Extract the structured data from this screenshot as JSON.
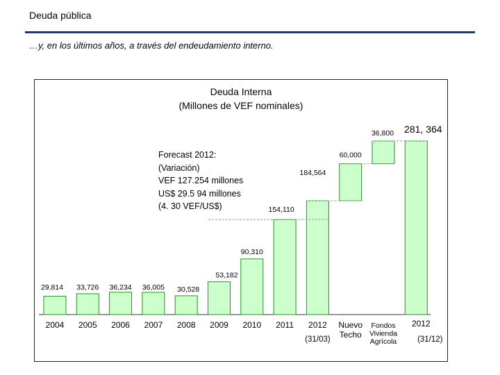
{
  "page": {
    "title": "Deuda pública",
    "subtitle": "…y, en los últimos años, a través del endeudamiento interno."
  },
  "forecast": {
    "lines": [
      "Forecast 2012:",
      "(Variación)",
      "VEF 127.254 millones",
      "US$ 29.5 94 millones",
      "(4. 30 VEF/US$)"
    ]
  },
  "colors": {
    "bar_fill": "#ccffcc",
    "bar_stroke": "#2e8b2e",
    "title_rule": "#1f3864",
    "connector": "#999999"
  },
  "chart_data": {
    "type": "bar",
    "subtype": "waterfall",
    "title": "Deuda Interna",
    "subtitle": "(Millones de VEF nominales)",
    "xlabel": "",
    "ylabel": "",
    "ylim": [
      0,
      300000
    ],
    "grid": false,
    "categories": [
      {
        "label": "2004",
        "sublabel": ""
      },
      {
        "label": "2005",
        "sublabel": ""
      },
      {
        "label": "2006",
        "sublabel": ""
      },
      {
        "label": "2007",
        "sublabel": ""
      },
      {
        "label": "2008",
        "sublabel": ""
      },
      {
        "label": "2009",
        "sublabel": ""
      },
      {
        "label": "2010",
        "sublabel": ""
      },
      {
        "label": "2011",
        "sublabel": ""
      },
      {
        "label": "2012",
        "sublabel": "(31/03)"
      },
      {
        "label": "Nuevo Techo",
        "sublabel": ""
      },
      {
        "label": "Fondos Vivienda Agrícola",
        "sublabel": ""
      },
      {
        "label": "2012",
        "sublabel": "(31/12)"
      }
    ],
    "bars": [
      {
        "base": 0,
        "value": 29814,
        "label": "29,814",
        "kind": "total"
      },
      {
        "base": 0,
        "value": 33726,
        "label": "33,726",
        "kind": "total"
      },
      {
        "base": 0,
        "value": 36234,
        "label": "36,234",
        "kind": "total"
      },
      {
        "base": 0,
        "value": 36005,
        "label": "36,005",
        "kind": "total"
      },
      {
        "base": 0,
        "value": 30528,
        "label": "30,528",
        "kind": "total"
      },
      {
        "base": 0,
        "value": 53182,
        "label": "53,182",
        "kind": "total"
      },
      {
        "base": 0,
        "value": 90310,
        "label": "90,310",
        "kind": "total"
      },
      {
        "base": 0,
        "value": 154110,
        "label": "154,110",
        "kind": "total"
      },
      {
        "base": 0,
        "value": 184564,
        "label": "184,564",
        "kind": "total"
      },
      {
        "base": 184564,
        "value": 60000,
        "label": "60,000",
        "kind": "increment"
      },
      {
        "base": 244564,
        "value": 36800,
        "label": "36,800",
        "kind": "increment"
      },
      {
        "base": 0,
        "value": 281364,
        "label": "281, 364",
        "kind": "total"
      }
    ]
  }
}
